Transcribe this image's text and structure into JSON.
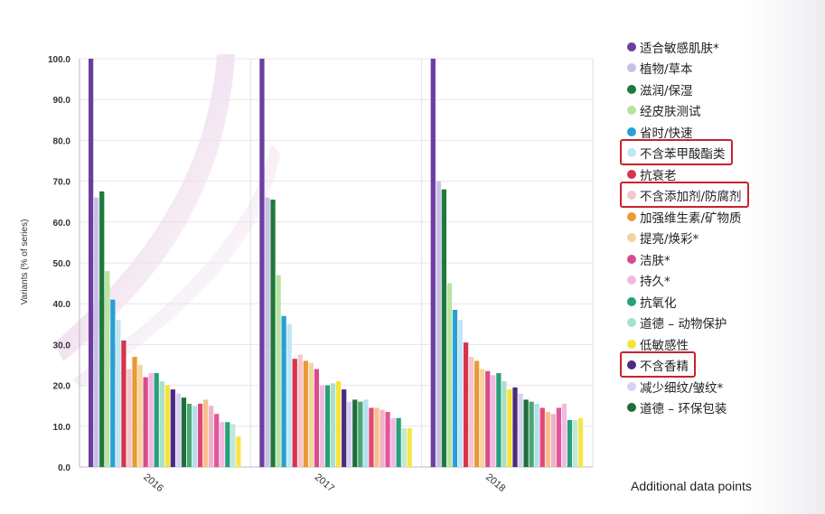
{
  "chart_data": {
    "type": "bar",
    "ylabel": "Variants (% of series)",
    "ylim": [
      0,
      100
    ],
    "yticks": [
      "0.0",
      "10.0",
      "20.0",
      "30.0",
      "40.0",
      "50.0",
      "60.0",
      "70.0",
      "80.0",
      "90.0",
      "100.0"
    ],
    "categories": [
      "2016",
      "2017",
      "2018"
    ],
    "grid": true,
    "legend_position": "right",
    "series": [
      {
        "name": "适合敏感肌肤*",
        "color": "#6b3fa0",
        "values": [
          100,
          100,
          100
        ]
      },
      {
        "name": "植物/草本",
        "color": "#cbbfe8",
        "values": [
          66,
          66,
          70
        ]
      },
      {
        "name": "滋润/保湿",
        "color": "#1e7a3c",
        "values": [
          67.5,
          65.5,
          68
        ]
      },
      {
        "name": "经皮肤测试",
        "color": "#b8e3a0",
        "values": [
          48,
          47,
          45
        ]
      },
      {
        "name": "省时/快速",
        "color": "#2a9fd6",
        "values": [
          41,
          37,
          38.5
        ]
      },
      {
        "name": "不含苯甲酸酯类",
        "color": "#bfe6f2",
        "values": [
          36,
          35,
          36
        ]
      },
      {
        "name": "抗衰老",
        "color": "#d6344c",
        "values": [
          31,
          26.5,
          30.5
        ]
      },
      {
        "name": "不含添加剂/防腐剂",
        "color": "#f5c6cf",
        "values": [
          24,
          27.5,
          27
        ]
      },
      {
        "name": "加强维生素/矿物质",
        "color": "#e89a36",
        "values": [
          27,
          26,
          26
        ]
      },
      {
        "name": "提亮/焕彩*",
        "color": "#f5d49b",
        "values": [
          25,
          25.5,
          24
        ]
      },
      {
        "name": "洁肤*",
        "color": "#d94c8c",
        "values": [
          22,
          24,
          23.5
        ]
      },
      {
        "name": "持久*",
        "color": "#f2b8e0",
        "values": [
          23,
          20,
          22.5
        ]
      },
      {
        "name": "抗氧化",
        "color": "#27a07a",
        "values": [
          23,
          20,
          23
        ]
      },
      {
        "name": "道德 – 动物保护",
        "color": "#a9e0c8",
        "values": [
          21,
          20.5,
          21
        ]
      },
      {
        "name": "低敏感性",
        "color": "#f5e33a",
        "values": [
          20,
          21,
          19
        ]
      },
      {
        "name": "不含香精",
        "color": "#4a2a82",
        "values": [
          19,
          19,
          19.5
        ]
      },
      {
        "name": "减少细纹/皱纹*",
        "color": "#d8d0f0",
        "values": [
          18,
          16,
          18
        ]
      },
      {
        "name": "道德 – 环保包装",
        "color": "#1f6e3a",
        "values": [
          17,
          16.5,
          16.5
        ]
      },
      {
        "name": "",
        "color": "#4aa872",
        "values": [
          15.5,
          16,
          16
        ]
      },
      {
        "name": "",
        "color": "#b3e0ef",
        "values": [
          15,
          16.5,
          15.5
        ]
      },
      {
        "name": "",
        "color": "#e0487a",
        "values": [
          15.5,
          14.5,
          14.5
        ]
      },
      {
        "name": "",
        "color": "#f7c08a",
        "values": [
          16.5,
          14.5,
          13.5
        ]
      },
      {
        "name": "",
        "color": "#f0b3c5",
        "values": [
          15,
          14,
          13
        ]
      },
      {
        "name": "",
        "color": "#e0569a",
        "values": [
          13,
          13.5,
          14.5
        ]
      },
      {
        "name": "",
        "color": "#f5b8e0",
        "values": [
          11,
          12,
          15.5
        ]
      },
      {
        "name": "",
        "color": "#26a07e",
        "values": [
          11,
          12,
          11.5
        ]
      },
      {
        "name": "",
        "color": "#bfe8d8",
        "values": [
          10.5,
          9.5,
          11.5
        ]
      },
      {
        "name": "",
        "color": "#f7e54a",
        "values": [
          7.5,
          9.5,
          12
        ]
      }
    ]
  },
  "legend": {
    "items": [
      {
        "label": "适合敏感肌肤*",
        "color": "#6b3fa0",
        "highlight": false
      },
      {
        "label": "植物/草本",
        "color": "#cbbfe8",
        "highlight": false
      },
      {
        "label": "滋润/保湿",
        "color": "#1e7a3c",
        "highlight": false
      },
      {
        "label": "经皮肤测试",
        "color": "#b8e3a0",
        "highlight": false
      },
      {
        "label": "省时/快速",
        "color": "#2a9fd6",
        "highlight": false
      },
      {
        "label": "不含苯甲酸酯类",
        "color": "#bfe6f2",
        "highlight": true
      },
      {
        "label": "抗衰老",
        "color": "#d6344c",
        "highlight": false
      },
      {
        "label": "不含添加剂/防腐剂",
        "color": "#f5c6cf",
        "highlight": true
      },
      {
        "label": "加强维生素/矿物质",
        "color": "#e89a36",
        "highlight": false
      },
      {
        "label": "提亮/焕彩*",
        "color": "#f5d49b",
        "highlight": false
      },
      {
        "label": "洁肤*",
        "color": "#d94c8c",
        "highlight": false
      },
      {
        "label": "持久*",
        "color": "#f2b8e0",
        "highlight": false
      },
      {
        "label": "抗氧化",
        "color": "#27a07a",
        "highlight": false
      },
      {
        "label": "道德 – 动物保护",
        "color": "#a9e0c8",
        "highlight": false
      },
      {
        "label": "低敏感性",
        "color": "#f5e33a",
        "highlight": false
      },
      {
        "label": "不含香精",
        "color": "#4a2a82",
        "highlight": true
      },
      {
        "label": "减少细纹/皱纹*",
        "color": "#d8d0f0",
        "highlight": false
      },
      {
        "label": "道德 – 环保包装",
        "color": "#1f6e3a",
        "highlight": false
      }
    ],
    "additional_label": "Additional data points",
    "highlight_color": "#c8232b"
  }
}
